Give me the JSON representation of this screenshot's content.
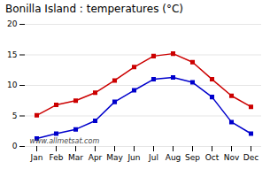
{
  "chart_data": {
    "type": "line",
    "title": "Bonilla Island : temperatures (°C)",
    "categories": [
      "Jan",
      "Feb",
      "Mar",
      "Apr",
      "May",
      "Jun",
      "Jul",
      "Aug",
      "Sep",
      "Oct",
      "Nov",
      "Dec"
    ],
    "series": [
      {
        "color": "#cc0000",
        "marker": "square",
        "values": [
          5.1,
          6.8,
          7.5,
          8.8,
          10.8,
          13.0,
          14.8,
          15.2,
          13.8,
          11.0,
          8.3,
          6.5
        ]
      },
      {
        "color": "#0000cc",
        "marker": "square",
        "values": [
          1.3,
          2.1,
          2.8,
          4.2,
          7.3,
          9.2,
          11.0,
          11.3,
          10.5,
          8.1,
          4.0,
          2.1
        ]
      }
    ],
    "ylim": [
      0,
      20
    ],
    "yticks": [
      0,
      5,
      10,
      15,
      20
    ],
    "grid": true,
    "annotations": [
      "www.allmetsat.com"
    ]
  }
}
